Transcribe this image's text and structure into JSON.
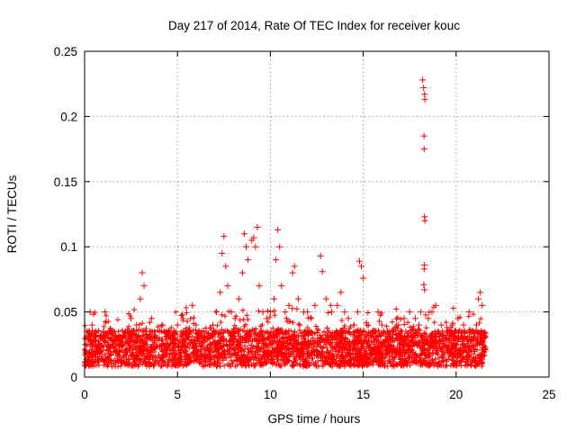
{
  "chart_data": {
    "type": "scatter",
    "title": "Day 217 of 2014, Rate Of TEC Index for receiver kouc",
    "xlabel": "GPS time / hours",
    "ylabel": "ROTI / TECUs",
    "xlim": [
      0,
      25
    ],
    "ylim": [
      0,
      0.25
    ],
    "x_ticks": [
      "0",
      "5",
      "10",
      "15",
      "20",
      "25"
    ],
    "y_ticks": [
      "0",
      "0.05",
      "0.1",
      "0.15",
      "0.2",
      "0.25"
    ],
    "grid": true,
    "legend": "none",
    "marker": "+",
    "series": [
      {
        "color": "#ff0000",
        "points": [
          [
            0.1,
            0.025
          ],
          [
            0.2,
            0.03
          ],
          [
            0.3,
            0.05
          ],
          [
            0.4,
            0.04
          ],
          [
            0.5,
            0.02
          ],
          [
            0.6,
            0.015
          ],
          [
            0.8,
            0.02
          ],
          [
            1.0,
            0.035
          ],
          [
            1.1,
            0.05
          ],
          [
            1.3,
            0.03
          ],
          [
            1.5,
            0.028
          ],
          [
            1.7,
            0.025
          ],
          [
            2.0,
            0.03
          ],
          [
            2.2,
            0.035
          ],
          [
            2.5,
            0.045
          ],
          [
            2.8,
            0.04
          ],
          [
            3.0,
            0.06
          ],
          [
            3.1,
            0.08
          ],
          [
            3.2,
            0.07
          ],
          [
            3.4,
            0.03
          ],
          [
            3.6,
            0.045
          ],
          [
            3.9,
            0.03
          ],
          [
            4.2,
            0.04
          ],
          [
            4.5,
            0.035
          ],
          [
            4.8,
            0.03
          ],
          [
            5.0,
            0.04
          ],
          [
            5.3,
            0.045
          ],
          [
            5.6,
            0.035
          ],
          [
            5.8,
            0.055
          ],
          [
            6.0,
            0.04
          ],
          [
            6.3,
            0.035
          ],
          [
            6.6,
            0.03
          ],
          [
            6.9,
            0.04
          ],
          [
            7.1,
            0.05
          ],
          [
            7.3,
            0.065
          ],
          [
            7.4,
            0.095
          ],
          [
            7.5,
            0.108
          ],
          [
            7.6,
            0.085
          ],
          [
            7.7,
            0.07
          ],
          [
            7.9,
            0.05
          ],
          [
            8.1,
            0.045
          ],
          [
            8.3,
            0.06
          ],
          [
            8.5,
            0.08
          ],
          [
            8.6,
            0.11
          ],
          [
            8.7,
            0.1
          ],
          [
            8.8,
            0.09
          ],
          [
            9.0,
            0.105
          ],
          [
            9.1,
            0.107
          ],
          [
            9.2,
            0.1
          ],
          [
            9.3,
            0.115
          ],
          [
            9.4,
            0.07
          ],
          [
            9.6,
            0.05
          ],
          [
            9.8,
            0.045
          ],
          [
            10.0,
            0.05
          ],
          [
            10.2,
            0.06
          ],
          [
            10.3,
            0.09
          ],
          [
            10.4,
            0.113
          ],
          [
            10.5,
            0.1
          ],
          [
            10.6,
            0.07
          ],
          [
            10.8,
            0.05
          ],
          [
            11.0,
            0.055
          ],
          [
            11.2,
            0.08
          ],
          [
            11.3,
            0.085
          ],
          [
            11.5,
            0.06
          ],
          [
            11.8,
            0.05
          ],
          [
            12.0,
            0.05
          ],
          [
            12.2,
            0.045
          ],
          [
            12.4,
            0.055
          ],
          [
            12.7,
            0.093
          ],
          [
            12.8,
            0.081
          ],
          [
            13.0,
            0.06
          ],
          [
            13.3,
            0.05
          ],
          [
            13.6,
            0.055
          ],
          [
            13.8,
            0.065
          ],
          [
            14.0,
            0.05
          ],
          [
            14.2,
            0.045
          ],
          [
            14.5,
            0.04
          ],
          [
            14.7,
            0.05
          ],
          [
            14.8,
            0.089
          ],
          [
            14.9,
            0.085
          ],
          [
            15.0,
            0.076
          ],
          [
            15.2,
            0.04
          ],
          [
            15.5,
            0.035
          ],
          [
            15.8,
            0.05
          ],
          [
            16.0,
            0.04
          ],
          [
            16.3,
            0.035
          ],
          [
            16.6,
            0.03
          ],
          [
            16.9,
            0.04
          ],
          [
            17.2,
            0.045
          ],
          [
            17.5,
            0.05
          ],
          [
            17.8,
            0.045
          ],
          [
            18.0,
            0.04
          ],
          [
            18.1,
            0.05
          ],
          [
            18.2,
            0.228
          ],
          [
            18.25,
            0.222
          ],
          [
            18.3,
            0.217
          ],
          [
            18.32,
            0.213
          ],
          [
            18.27,
            0.185
          ],
          [
            18.28,
            0.175
          ],
          [
            18.3,
            0.123
          ],
          [
            18.32,
            0.12
          ],
          [
            18.3,
            0.086
          ],
          [
            18.28,
            0.083
          ],
          [
            18.26,
            0.071
          ],
          [
            18.3,
            0.067
          ],
          [
            18.5,
            0.045
          ],
          [
            18.7,
            0.05
          ],
          [
            18.9,
            0.055
          ],
          [
            19.2,
            0.04
          ],
          [
            19.5,
            0.035
          ],
          [
            19.8,
            0.04
          ],
          [
            20.1,
            0.045
          ],
          [
            20.4,
            0.04
          ],
          [
            20.7,
            0.05
          ],
          [
            20.9,
            0.035
          ],
          [
            21.1,
            0.04
          ],
          [
            21.2,
            0.06
          ],
          [
            21.3,
            0.065
          ],
          [
            21.4,
            0.055
          ],
          [
            21.5,
            0.03
          ]
        ]
      }
    ]
  }
}
